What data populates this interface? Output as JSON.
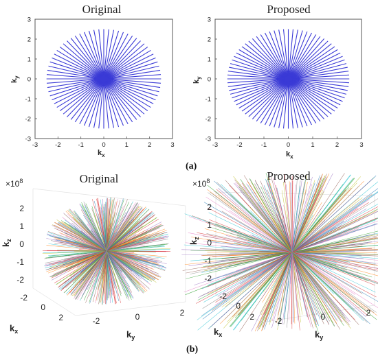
{
  "panel_labels": {
    "a": "(a)",
    "b": "(b)"
  },
  "chart_data": [
    {
      "type": "line",
      "title": "Original",
      "xlabel_base": "k",
      "xlabel_sub": "x",
      "ylabel_base": "k",
      "ylabel_sub": "y",
      "xlim": [
        -3,
        3
      ],
      "ylim": [
        -3,
        3
      ],
      "xticks": [
        "-3",
        "-2",
        "-1",
        "0",
        "1",
        "2",
        "3"
      ],
      "yticks": [
        "-3",
        "-2",
        "-1",
        "0",
        "1",
        "2",
        "3"
      ],
      "spokes": 36,
      "radius": 2.5,
      "line_color": "#3a3ad6"
    },
    {
      "type": "line",
      "title": "Proposed",
      "xlabel_base": "k",
      "xlabel_sub": "x",
      "ylabel_base": "k",
      "ylabel_sub": "y",
      "xlim": [
        -3,
        3
      ],
      "ylim": [
        -3,
        3
      ],
      "xticks": [
        "-3",
        "-2",
        "-1",
        "0",
        "1",
        "2",
        "3"
      ],
      "yticks": [
        "-3",
        "-2",
        "-1",
        "0",
        "1",
        "2",
        "3"
      ],
      "spokes": 40,
      "radius": 2.5,
      "line_color": "#3a3ad6"
    },
    {
      "type": "line",
      "title": "Original",
      "exponent": "×10",
      "exponent_power": "8",
      "xlabel_base": "k",
      "xlabel_sub": "x",
      "ylabel_base": "k",
      "ylabel_sub": "y",
      "zlabel_base": "k",
      "zlabel_sub": "z",
      "zticks": [
        "2",
        "1",
        "0",
        "-1",
        "-2"
      ],
      "xticks": [
        "-2",
        "0",
        "2"
      ],
      "yticks": [
        "-2",
        "0",
        "2"
      ],
      "spokes": 300,
      "shape": "sphere"
    },
    {
      "type": "line",
      "title": "Proposed",
      "exponent": "×10",
      "exponent_power": "8",
      "xlabel_base": "k",
      "xlabel_sub": "x",
      "ylabel_base": "k",
      "ylabel_sub": "y",
      "zlabel_base": "k",
      "zlabel_sub": "z",
      "zticks": [
        "2",
        "1",
        "0",
        "-1",
        "-2"
      ],
      "xticks": [
        "-2",
        "0",
        "2"
      ],
      "yticks": [
        "-2",
        "0",
        "2"
      ],
      "spokes": 260,
      "shape": "cube"
    }
  ]
}
